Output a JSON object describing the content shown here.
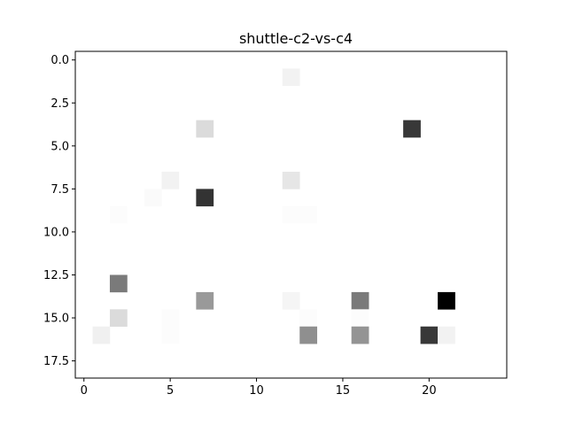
{
  "chart_data": {
    "type": "heatmap",
    "title": "shuttle-c2-vs-c4",
    "xlabel": "",
    "ylabel": "",
    "colormap": "gray_r",
    "cols": 25,
    "rows": 19,
    "xlim": [
      -0.5,
      24.5
    ],
    "ylim": [
      18.5,
      -0.5
    ],
    "x_ticks": [
      0,
      5,
      10,
      15,
      20
    ],
    "x_tick_labels": [
      "0",
      "5",
      "10",
      "15",
      "20"
    ],
    "y_ticks": [
      0.0,
      2.5,
      5.0,
      7.5,
      10.0,
      12.5,
      15.0,
      17.5
    ],
    "y_tick_labels": [
      "0.0",
      "2.5",
      "5.0",
      "7.5",
      "10.0",
      "12.5",
      "15.0",
      "17.5"
    ],
    "grid": false,
    "cells": [
      {
        "row": 1,
        "col": 12,
        "value": 0.05
      },
      {
        "row": 4,
        "col": 7,
        "value": 0.14
      },
      {
        "row": 4,
        "col": 19,
        "value": 0.78
      },
      {
        "row": 7,
        "col": 5,
        "value": 0.05
      },
      {
        "row": 7,
        "col": 12,
        "value": 0.1
      },
      {
        "row": 8,
        "col": 4,
        "value": 0.02
      },
      {
        "row": 8,
        "col": 7,
        "value": 0.8
      },
      {
        "row": 9,
        "col": 2,
        "value": 0.01
      },
      {
        "row": 9,
        "col": 12,
        "value": 0.01
      },
      {
        "row": 9,
        "col": 13,
        "value": 0.01
      },
      {
        "row": 13,
        "col": 2,
        "value": 0.52
      },
      {
        "row": 14,
        "col": 7,
        "value": 0.4
      },
      {
        "row": 14,
        "col": 12,
        "value": 0.04
      },
      {
        "row": 14,
        "col": 16,
        "value": 0.52
      },
      {
        "row": 14,
        "col": 21,
        "value": 1.0
      },
      {
        "row": 15,
        "col": 2,
        "value": 0.14
      },
      {
        "row": 15,
        "col": 5,
        "value": 0.01
      },
      {
        "row": 15,
        "col": 13,
        "value": 0.01
      },
      {
        "row": 15,
        "col": 16,
        "value": 0.01
      },
      {
        "row": 16,
        "col": 1,
        "value": 0.06
      },
      {
        "row": 16,
        "col": 5,
        "value": 0.01
      },
      {
        "row": 16,
        "col": 13,
        "value": 0.44
      },
      {
        "row": 16,
        "col": 16,
        "value": 0.42
      },
      {
        "row": 16,
        "col": 20,
        "value": 0.78
      },
      {
        "row": 16,
        "col": 21,
        "value": 0.05
      }
    ]
  }
}
